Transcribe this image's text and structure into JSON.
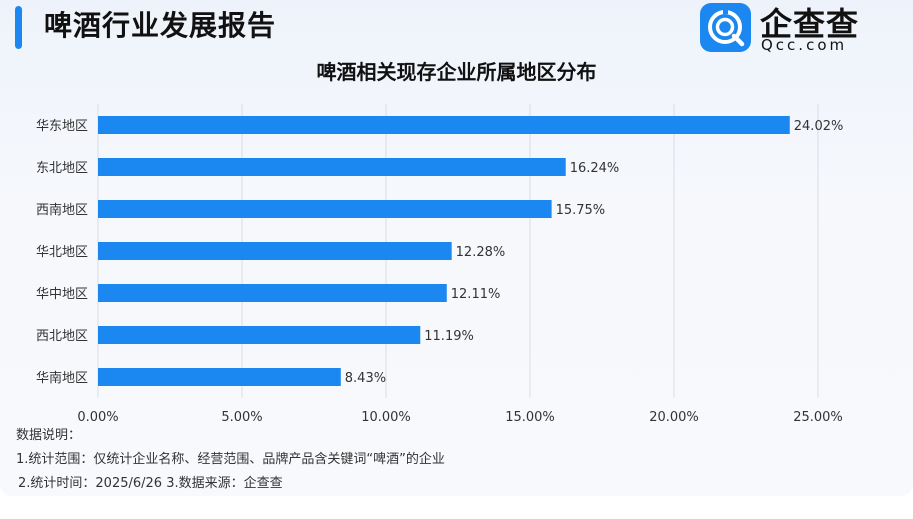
{
  "header": {
    "title": "啤酒行业发展报告"
  },
  "logo": {
    "name": "企查查",
    "subtitle": "Qcc.com",
    "icon": "qcc-logo-icon",
    "brand_color": "#1b87f0"
  },
  "chart_data": {
    "type": "bar",
    "orientation": "horizontal",
    "title": "啤酒相关现存企业所属地区分布",
    "categories": [
      "华东地区",
      "东北地区",
      "西南地区",
      "华北地区",
      "华中地区",
      "西北地区",
      "华南地区"
    ],
    "values": [
      24.02,
      16.24,
      15.75,
      12.28,
      12.11,
      11.19,
      8.43
    ],
    "value_labels": [
      "24.02%",
      "16.24%",
      "15.75%",
      "12.28%",
      "12.11%",
      "11.19%",
      "8.43%"
    ],
    "xlim": [
      0,
      25
    ],
    "xticks": [
      0,
      5,
      10,
      15,
      20,
      25
    ],
    "xtick_labels": [
      "0.00%",
      "5.00%",
      "10.00%",
      "15.00%",
      "20.00%",
      "25.00%"
    ],
    "xlabel": "",
    "ylabel": "",
    "grid": "vertical",
    "bar_color": "#1b87f0"
  },
  "notes": {
    "heading": "数据说明：",
    "line1": "1.统计范围：仅统计企业名称、经营范围、品牌产品含关键词“啤酒”的企业",
    "line2": "2.统计时间：2025/6/26 3.数据来源：企查查"
  }
}
